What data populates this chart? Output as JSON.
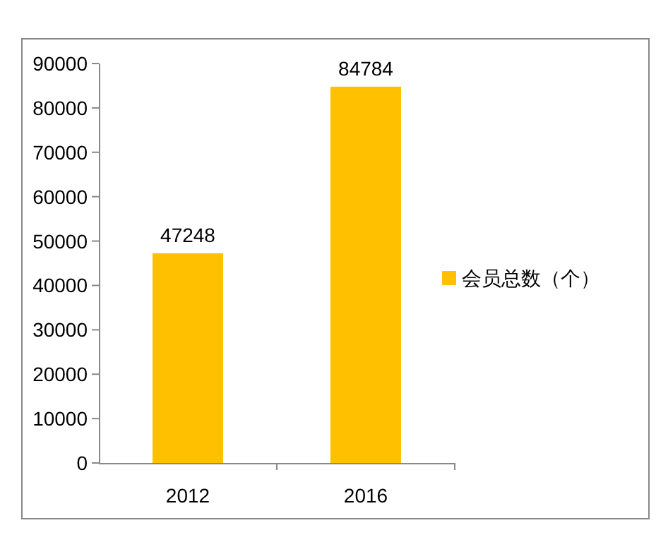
{
  "chart_data": {
    "type": "bar",
    "categories": [
      "2012",
      "2016"
    ],
    "series": [
      {
        "name": "会员总数（个）",
        "color": "#ffc000",
        "values": [
          47248,
          84784
        ]
      }
    ],
    "ylim": [
      0,
      90000
    ],
    "yticks": [
      0,
      10000,
      20000,
      30000,
      40000,
      50000,
      60000,
      70000,
      80000,
      90000
    ],
    "data_labels": true,
    "legend": "right",
    "grid": false
  }
}
